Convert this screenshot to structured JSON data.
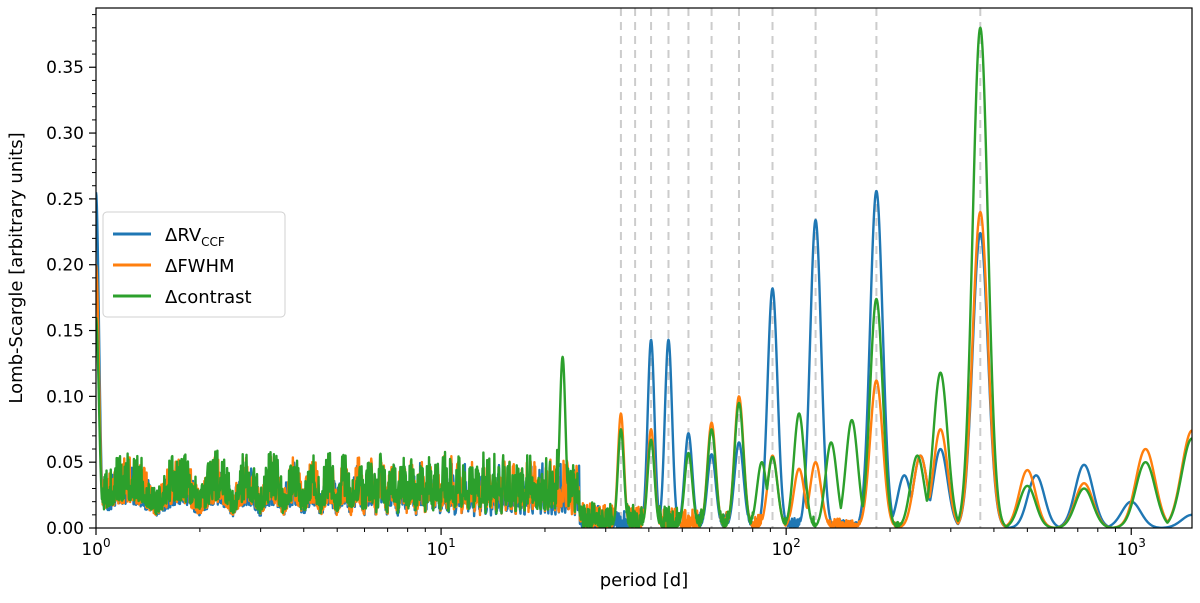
{
  "chart_data": {
    "type": "line",
    "xscale": "log",
    "xlim": [
      1,
      1500
    ],
    "ylim": [
      0,
      0.395
    ],
    "xlabel": "period [d]",
    "ylabel": "Lomb-Scargle [arbitrary units]",
    "x_ticks": [
      1,
      10,
      100,
      1000
    ],
    "x_tick_labels": [
      {
        "base": "10",
        "exp": "0"
      },
      {
        "base": "10",
        "exp": "1"
      },
      {
        "base": "10",
        "exp": "2"
      },
      {
        "base": "10",
        "exp": "3"
      }
    ],
    "y_ticks": [
      0.0,
      0.05,
      0.1,
      0.15,
      0.2,
      0.25,
      0.3,
      0.35
    ],
    "y_tick_labels": [
      "0.00",
      "0.05",
      "0.10",
      "0.15",
      "0.20",
      "0.25",
      "0.30",
      "0.35"
    ],
    "grid": false,
    "legend_position": "center-left",
    "reference_lines": [
      33.2,
      36.5,
      40.6,
      45.6,
      52.1,
      60.8,
      73.0,
      91.3,
      121.7,
      182.6,
      365.25
    ],
    "series": [
      {
        "name": "ΔRV",
        "subscript": "CCF",
        "color": "#1f77b4",
        "noise_amplitude": 0.05,
        "peaks": [
          [
            1.0,
            0.255
          ],
          [
            40.6,
            0.143
          ],
          [
            45.6,
            0.143
          ],
          [
            52.1,
            0.072
          ],
          [
            60.8,
            0.056
          ],
          [
            73.0,
            0.065
          ],
          [
            91.3,
            0.182
          ],
          [
            121.7,
            0.234
          ],
          [
            182.6,
            0.256
          ],
          [
            220,
            0.04
          ],
          [
            245,
            0.055
          ],
          [
            280,
            0.06
          ],
          [
            365.25,
            0.224
          ],
          [
            530,
            0.04
          ],
          [
            730,
            0.048
          ],
          [
            1000,
            0.02
          ],
          [
            1500,
            0.01
          ]
        ]
      },
      {
        "name": "ΔFWHM",
        "color": "#ff7f0e",
        "noise_amplitude": 0.055,
        "peaks": [
          [
            1.0,
            0.2
          ],
          [
            33.2,
            0.087
          ],
          [
            40.6,
            0.075
          ],
          [
            60.8,
            0.08
          ],
          [
            73.0,
            0.1
          ],
          [
            91.3,
            0.055
          ],
          [
            109,
            0.045
          ],
          [
            121.7,
            0.05
          ],
          [
            182.6,
            0.112
          ],
          [
            245,
            0.055
          ],
          [
            280,
            0.075
          ],
          [
            365.25,
            0.24
          ],
          [
            500,
            0.044
          ],
          [
            730,
            0.034
          ],
          [
            1100,
            0.06
          ],
          [
            1500,
            0.074
          ]
        ]
      },
      {
        "name": "Δcontrast",
        "color": "#2ca02c",
        "noise_amplitude": 0.06,
        "peaks": [
          [
            1.0,
            0.16
          ],
          [
            22.5,
            0.13
          ],
          [
            33.2,
            0.075
          ],
          [
            40.6,
            0.067
          ],
          [
            52.1,
            0.057
          ],
          [
            60.8,
            0.075
          ],
          [
            73.0,
            0.095
          ],
          [
            85,
            0.05
          ],
          [
            91.3,
            0.054
          ],
          [
            109,
            0.087
          ],
          [
            135,
            0.065
          ],
          [
            155,
            0.082
          ],
          [
            182.6,
            0.174
          ],
          [
            240,
            0.055
          ],
          [
            280,
            0.118
          ],
          [
            365.25,
            0.38
          ],
          [
            500,
            0.032
          ],
          [
            730,
            0.03
          ],
          [
            1100,
            0.05
          ],
          [
            1500,
            0.068
          ]
        ]
      }
    ]
  }
}
